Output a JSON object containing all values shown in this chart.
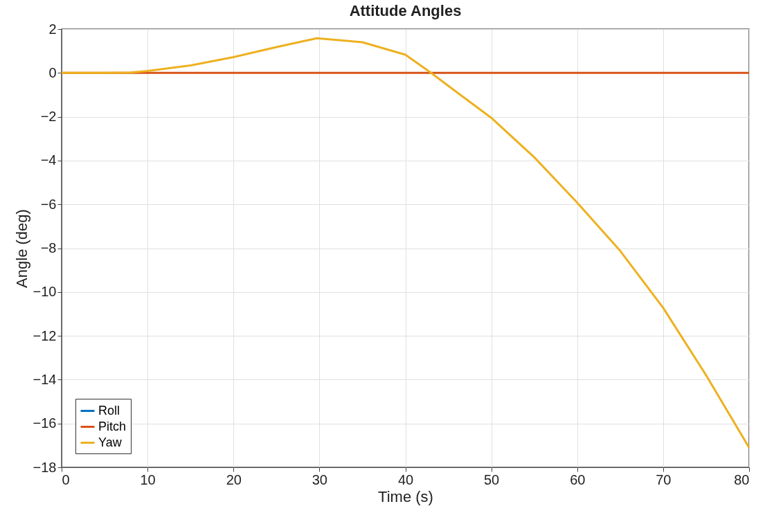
{
  "chart_data": {
    "type": "line",
    "title": "Attitude Angles",
    "xlabel": "Time (s)",
    "ylabel": "Angle (deg)",
    "x": [
      0,
      5,
      8,
      10,
      15,
      20,
      25,
      29.7,
      35,
      40,
      43,
      45,
      50,
      55,
      60,
      65,
      70,
      75,
      80
    ],
    "series": [
      {
        "name": "Roll",
        "color": "#0072bd",
        "values": [
          null,
          null,
          null,
          null,
          null,
          null,
          null,
          null,
          null,
          null,
          null,
          null,
          null,
          null,
          null,
          null,
          null,
          null,
          null
        ]
      },
      {
        "name": "Pitch",
        "color": "#d95319",
        "values": [
          0,
          0,
          0,
          0,
          0,
          0,
          0,
          0,
          0,
          0,
          0,
          0,
          0,
          0,
          0,
          0,
          0,
          0,
          0
        ]
      },
      {
        "name": "Yaw",
        "color": "#edb120",
        "values": [
          0,
          0,
          0.02,
          0.09,
          0.34,
          0.72,
          1.18,
          1.58,
          1.4,
          0.83,
          0,
          -0.59,
          -2.05,
          -3.85,
          -5.92,
          -8.12,
          -10.72,
          -13.8,
          -17.1
        ]
      }
    ],
    "xlim": [
      0,
      80
    ],
    "xticks": [
      0,
      10,
      20,
      30,
      40,
      50,
      60,
      70,
      80
    ],
    "ylim": [
      -18,
      2
    ],
    "yticks": [
      -18,
      -16,
      -14,
      -12,
      -10,
      -8,
      -6,
      -4,
      -2,
      0,
      2
    ],
    "grid": true,
    "legend": "bottom left",
    "marker": "none",
    "line_style": "solid"
  }
}
